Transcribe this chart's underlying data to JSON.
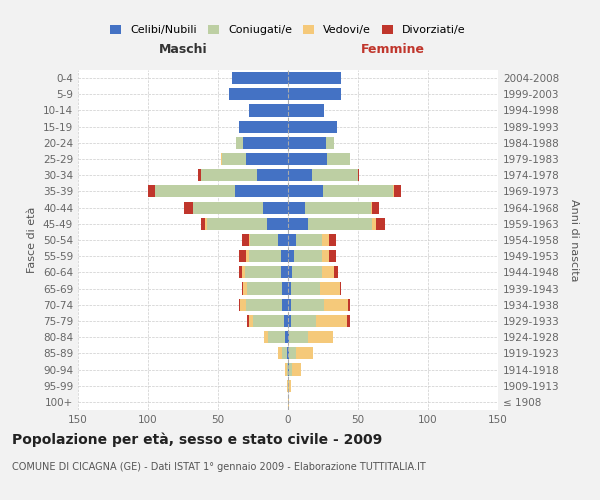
{
  "age_groups": [
    "100+",
    "95-99",
    "90-94",
    "85-89",
    "80-84",
    "75-79",
    "70-74",
    "65-69",
    "60-64",
    "55-59",
    "50-54",
    "45-49",
    "40-44",
    "35-39",
    "30-34",
    "25-29",
    "20-24",
    "15-19",
    "10-14",
    "5-9",
    "0-4"
  ],
  "birth_years": [
    "≤ 1908",
    "1909-1913",
    "1914-1918",
    "1919-1923",
    "1924-1928",
    "1929-1933",
    "1934-1938",
    "1939-1943",
    "1944-1948",
    "1949-1953",
    "1954-1958",
    "1959-1963",
    "1964-1968",
    "1969-1973",
    "1974-1978",
    "1979-1983",
    "1984-1988",
    "1989-1993",
    "1994-1998",
    "1999-2003",
    "2004-2008"
  ],
  "colors": {
    "celibe": "#4472C4",
    "coniugato": "#BDCFA3",
    "vedovo": "#F5C97A",
    "divorziato": "#C0362C"
  },
  "males": {
    "celibe": [
      0,
      0,
      0,
      1,
      2,
      3,
      4,
      4,
      5,
      5,
      7,
      15,
      18,
      38,
      22,
      30,
      32,
      35,
      28,
      42,
      40
    ],
    "coniugato": [
      0,
      0,
      1,
      3,
      12,
      22,
      26,
      25,
      26,
      23,
      20,
      43,
      50,
      57,
      40,
      17,
      5,
      0,
      0,
      0,
      0
    ],
    "vedovo": [
      0,
      1,
      1,
      3,
      3,
      3,
      4,
      3,
      2,
      2,
      1,
      1,
      0,
      0,
      0,
      1,
      0,
      0,
      0,
      0,
      0
    ],
    "divorziato": [
      0,
      0,
      0,
      0,
      0,
      1,
      1,
      1,
      2,
      5,
      5,
      3,
      6,
      5,
      2,
      0,
      0,
      0,
      0,
      0,
      0
    ]
  },
  "females": {
    "nubile": [
      0,
      0,
      1,
      1,
      1,
      2,
      2,
      2,
      3,
      4,
      6,
      14,
      12,
      25,
      17,
      28,
      27,
      35,
      26,
      38,
      38
    ],
    "coniugata": [
      0,
      1,
      2,
      5,
      13,
      18,
      24,
      21,
      21,
      20,
      18,
      46,
      47,
      50,
      33,
      16,
      6,
      0,
      0,
      0,
      0
    ],
    "vedova": [
      1,
      1,
      6,
      12,
      18,
      22,
      17,
      14,
      9,
      5,
      5,
      3,
      1,
      1,
      0,
      0,
      0,
      0,
      0,
      0,
      0
    ],
    "divorziata": [
      0,
      0,
      0,
      0,
      0,
      2,
      1,
      1,
      3,
      5,
      5,
      6,
      5,
      5,
      1,
      0,
      0,
      0,
      0,
      0,
      0
    ]
  },
  "xlim": 150,
  "xlabel_left": "Maschi",
  "xlabel_right": "Femmine",
  "ylabel_left": "Fasce di età",
  "ylabel_right": "Anni di nascita",
  "title": "Popolazione per età, sesso e stato civile - 2009",
  "subtitle": "COMUNE DI CICAGNA (GE) - Dati ISTAT 1° gennaio 2009 - Elaborazione TUTTITALIA.IT",
  "legend_labels": [
    "Celibi/Nubili",
    "Coniugati/e",
    "Vedovi/e",
    "Divorziati/e"
  ],
  "bg_color": "#F2F2F2",
  "plot_bg_color": "#FFFFFF",
  "grid_color": "#CCCCCC",
  "bar_height": 0.75,
  "title_fontsize": 10,
  "subtitle_fontsize": 7,
  "tick_fontsize": 7.5,
  "legend_fontsize": 8,
  "header_fontsize": 9
}
